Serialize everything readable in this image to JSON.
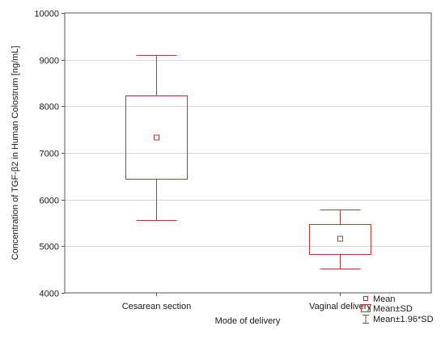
{
  "chart_data": {
    "type": "box",
    "title": "",
    "xlabel": "Mode of delivery",
    "ylabel": "Concentration of TGF-β2 in Human Colostrum [ng/mL]",
    "ylim": [
      4000,
      10000
    ],
    "yticks": [
      4000,
      5000,
      6000,
      7000,
      8000,
      9000,
      10000
    ],
    "grid": true,
    "categories": [
      "Cesarean section",
      "Vaginal delivery"
    ],
    "groups": [
      {
        "category": "Cesarean section",
        "mean": 7330,
        "mean_minus_sd": 6440,
        "mean_plus_sd": 8230,
        "mean_minus_1_96sd": 5560,
        "mean_plus_1_96sd": 9100
      },
      {
        "category": "Vaginal delivery",
        "mean": 5160,
        "mean_minus_sd": 4840,
        "mean_plus_sd": 5480,
        "mean_minus_1_96sd": 4520,
        "mean_plus_1_96sd": 5790
      }
    ],
    "legend": {
      "placement": "bottom-right",
      "items": [
        {
          "symbol": "mean-marker",
          "label": "Mean"
        },
        {
          "symbol": "box",
          "label": "Mean±SD"
        },
        {
          "symbol": "whisker",
          "label": "Mean±1.96*SD"
        }
      ]
    },
    "colors": {
      "series": "#b03a3a",
      "grid": "#d9d9d9",
      "frame": "#555555"
    }
  }
}
